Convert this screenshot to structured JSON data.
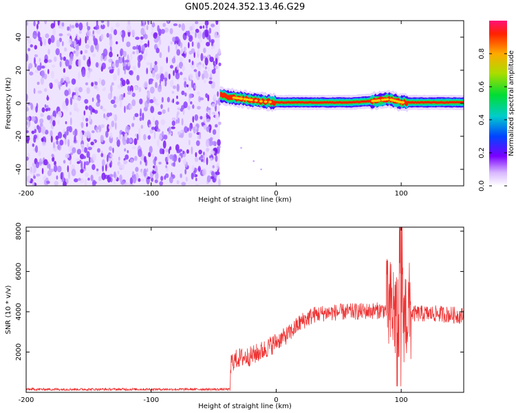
{
  "title": "GN05.2024.352.13.46.G29",
  "chart_data": [
    {
      "type": "heatmap",
      "xlabel": "Height of straight line (km)",
      "ylabel": "Frequency (Hz)",
      "xlim": [
        -200,
        150
      ],
      "ylim": [
        -50,
        50
      ],
      "xticks": [
        -200,
        -100,
        0,
        100
      ],
      "yticks": [
        -40,
        -20,
        0,
        20,
        40
      ],
      "colorbar": {
        "label": "Normalized spectral amplitude",
        "range": [
          0,
          1
        ],
        "ticks": [
          0.0,
          0.2,
          0.4,
          0.6,
          0.8
        ]
      },
      "noise_region": {
        "x": [
          -200,
          -45
        ],
        "y": [
          -50,
          50
        ]
      },
      "signal_band": {
        "x": [
          -45,
          150
        ],
        "center_frequency": [
          {
            "x": -45,
            "y": 5
          },
          {
            "x": -40,
            "y": 4
          },
          {
            "x": -30,
            "y": 3
          },
          {
            "x": -20,
            "y": 2
          },
          {
            "x": -10,
            "y": 1
          },
          {
            "x": 0,
            "y": 0.5
          },
          {
            "x": 20,
            "y": 0.5
          },
          {
            "x": 60,
            "y": 0.5
          },
          {
            "x": 80,
            "y": 1.5
          },
          {
            "x": 90,
            "y": 2.5
          },
          {
            "x": 95,
            "y": 1.5
          },
          {
            "x": 100,
            "y": 0.5
          },
          {
            "x": 150,
            "y": 0.5
          }
        ]
      }
    },
    {
      "type": "line",
      "xlabel": "Height of straight line (km)",
      "ylabel": "SNR (10 * v/v)",
      "xlim": [
        -200,
        150
      ],
      "ylim": [
        0,
        8200
      ],
      "xticks": [
        -200,
        -100,
        0,
        100
      ],
      "yticks": [
        2000,
        4000,
        6000,
        8000
      ],
      "color": "#ee3333",
      "series": [
        {
          "values": [
            {
              "x": -200,
              "y": 150
            },
            {
              "x": -150,
              "y": 150
            },
            {
              "x": -100,
              "y": 150
            },
            {
              "x": -50,
              "y": 150
            },
            {
              "x": -37,
              "y": 150
            },
            {
              "x": -36,
              "y": 1500
            },
            {
              "x": -30,
              "y": 1700
            },
            {
              "x": -20,
              "y": 1800
            },
            {
              "x": -10,
              "y": 2100
            },
            {
              "x": 0,
              "y": 2500
            },
            {
              "x": 10,
              "y": 2900
            },
            {
              "x": 20,
              "y": 3500
            },
            {
              "x": 30,
              "y": 3850
            },
            {
              "x": 40,
              "y": 3950
            },
            {
              "x": 60,
              "y": 4000
            },
            {
              "x": 80,
              "y": 4050
            },
            {
              "x": 90,
              "y": 4100
            },
            {
              "x": 95,
              "y": 4000
            },
            {
              "x": 100,
              "y": 4000
            },
            {
              "x": 110,
              "y": 3900
            },
            {
              "x": 130,
              "y": 3900
            },
            {
              "x": 150,
              "y": 3800
            }
          ]
        }
      ]
    }
  ]
}
